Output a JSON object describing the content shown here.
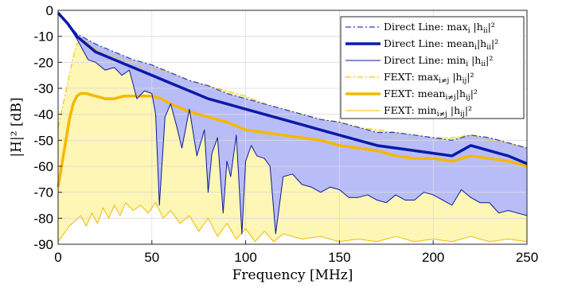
{
  "chart_data": {
    "type": "line",
    "title": "",
    "xlabel": "Frequency [MHz]",
    "ylabel": "|H|² [dB]",
    "xlim": [
      0,
      250
    ],
    "ylim": [
      -90,
      0
    ],
    "x_ticks": [
      "0",
      "50",
      "100",
      "150",
      "200",
      "250"
    ],
    "y_ticks": [
      "0",
      "-10",
      "-20",
      "-30",
      "-40",
      "-50",
      "-60",
      "-70",
      "-80",
      "-90"
    ],
    "grid": true,
    "legend_position": "top-right",
    "series": [
      {
        "name": "Direct Line: max_i |h_ii|²",
        "legend": {
          "prefix": "Direct Line: max",
          "sub": "i",
          "mid": " |h",
          "sub2": "ii",
          "suffix": "|²"
        },
        "color": "#1f3fbf",
        "style": "dashdot",
        "width": 1.2,
        "x": [
          0,
          5,
          10,
          15,
          20,
          30,
          40,
          50,
          60,
          70,
          80,
          90,
          100,
          110,
          120,
          130,
          140,
          150,
          160,
          170,
          180,
          190,
          200,
          210,
          220,
          230,
          240,
          250
        ],
        "y": [
          -0.5,
          -5,
          -9,
          -11,
          -13,
          -16,
          -19,
          -21,
          -24,
          -27,
          -29,
          -32,
          -34,
          -36,
          -38,
          -40,
          -42,
          -43,
          -45,
          -47,
          -47,
          -48,
          -49,
          -50,
          -48,
          -49,
          -51,
          -53
        ]
      },
      {
        "name": "Direct Line: mean_i |h_ii|²",
        "legend": {
          "prefix": "Direct Line: mean",
          "sub": "i",
          "mid": "|h",
          "sub2": "ii",
          "suffix": "|²"
        },
        "color": "#0a1aa8",
        "style": "solid",
        "width": 3.5,
        "x": [
          0,
          5,
          10,
          15,
          20,
          30,
          40,
          50,
          60,
          70,
          80,
          90,
          100,
          110,
          120,
          130,
          140,
          150,
          160,
          170,
          180,
          190,
          200,
          210,
          220,
          230,
          240,
          250
        ],
        "y": [
          -1,
          -5,
          -10,
          -13,
          -16,
          -19,
          -22,
          -25,
          -28,
          -31,
          -34,
          -36,
          -38,
          -40,
          -42,
          -44,
          -46,
          -48,
          -50,
          -52,
          -53,
          -54,
          -55,
          -56,
          -52,
          -54,
          -56,
          -59
        ]
      },
      {
        "name": "Direct Line: min_i |h_ii|²",
        "legend": {
          "prefix": "Direct Line: min",
          "sub": "i",
          "mid": " |h",
          "sub2": "ii",
          "suffix": "|²"
        },
        "color": "#0a1a9a",
        "style": "solid",
        "width": 1.0,
        "x": [
          0,
          5,
          10,
          13,
          16,
          20,
          25,
          30,
          34,
          38,
          42,
          46,
          50,
          52,
          54,
          57,
          60,
          63,
          66,
          70,
          74,
          78,
          80,
          82,
          85,
          88,
          90,
          92,
          95,
          98,
          100,
          103,
          106,
          110,
          113,
          116,
          120,
          125,
          130,
          135,
          140,
          145,
          150,
          155,
          160,
          165,
          170,
          175,
          180,
          185,
          190,
          195,
          200,
          205,
          210,
          215,
          220,
          225,
          230,
          235,
          240,
          245,
          250
        ],
        "y": [
          -1,
          -5,
          -11,
          -15,
          -19,
          -20,
          -23,
          -22,
          -25,
          -23,
          -34,
          -31,
          -32,
          -40,
          -75,
          -41,
          -36,
          -44,
          -53,
          -38,
          -56,
          -46,
          -70,
          -55,
          -49,
          -78,
          -58,
          -64,
          -48,
          -86,
          -58,
          -52,
          -56,
          -57,
          -60,
          -86,
          -64,
          -63,
          -67,
          -68,
          -70,
          -68,
          -69,
          -72,
          -72,
          -71,
          -73,
          -74,
          -71,
          -73,
          -73,
          -70,
          -71,
          -73,
          -75,
          -69,
          -72,
          -74,
          -74,
          -78,
          -77,
          -78,
          -79
        ]
      },
      {
        "name": "FEXT: max_{i≠j} |h_ij|²",
        "legend": {
          "prefix": "FEXT: max",
          "sub": "i≠j",
          "mid": " |h",
          "sub2": "ij",
          "suffix": "|²"
        },
        "color": "#f5c700",
        "style": "dashdot",
        "width": 1.2,
        "x": [
          0,
          3,
          6,
          8,
          10,
          12,
          15,
          20,
          25,
          30,
          35,
          40,
          45,
          50,
          60,
          70,
          80,
          90,
          100,
          110,
          120,
          130,
          140,
          150,
          160,
          170,
          180,
          190,
          200,
          210,
          220,
          230,
          240,
          250
        ],
        "y": [
          -45,
          -35,
          -25,
          -18,
          -13,
          -11,
          -12,
          -15,
          -17,
          -18,
          -19,
          -20,
          -22,
          -22,
          -24,
          -27,
          -29,
          -31,
          -33,
          -36,
          -38,
          -40,
          -42,
          -43,
          -45,
          -46,
          -47,
          -48,
          -49,
          -49,
          -48,
          -50,
          -51,
          -53
        ]
      },
      {
        "name": "FEXT: mean_{i≠j} |h_ij|²",
        "legend": {
          "prefix": "FEXT: mean",
          "sub": "i≠j",
          "mid": "|h",
          "sub2": "ij",
          "suffix": "|²"
        },
        "color": "#f5b800",
        "style": "solid",
        "width": 3.5,
        "x": [
          0,
          3,
          6,
          8,
          10,
          12,
          15,
          20,
          25,
          30,
          35,
          40,
          45,
          50,
          55,
          60,
          70,
          80,
          90,
          100,
          110,
          120,
          130,
          140,
          150,
          160,
          170,
          180,
          190,
          200,
          210,
          220,
          230,
          240,
          250
        ],
        "y": [
          -68,
          -55,
          -42,
          -36,
          -33,
          -32,
          -32,
          -33,
          -34,
          -34,
          -33,
          -33,
          -33,
          -33,
          -34,
          -36,
          -39,
          -41,
          -43,
          -46,
          -47,
          -48,
          -49,
          -50,
          -52,
          -53,
          -54,
          -56,
          -57,
          -57,
          -58,
          -56,
          -57,
          -58,
          -60
        ]
      },
      {
        "name": "FEXT: min_{i≠j} |h_ij|²",
        "legend": {
          "prefix": "FEXT: min",
          "sub": "i≠j",
          "mid": " |h",
          "sub2": "ij",
          "suffix": "|²"
        },
        "color": "#f5b800",
        "style": "solid",
        "width": 1.0,
        "x": [
          0,
          3,
          6,
          9,
          12,
          15,
          18,
          21,
          24,
          27,
          30,
          33,
          36,
          40,
          44,
          48,
          52,
          56,
          60,
          65,
          70,
          75,
          80,
          85,
          90,
          95,
          100,
          105,
          110,
          115,
          120,
          130,
          140,
          150,
          160,
          170,
          180,
          190,
          200,
          210,
          220,
          230,
          240,
          250
        ],
        "y": [
          -89,
          -86,
          -83,
          -81,
          -79,
          -83,
          -78,
          -82,
          -76,
          -80,
          -75,
          -79,
          -74,
          -77,
          -75,
          -78,
          -74,
          -80,
          -77,
          -82,
          -79,
          -85,
          -80,
          -87,
          -82,
          -88,
          -84,
          -89,
          -85,
          -89,
          -86,
          -88,
          -87,
          -89,
          -88,
          -89,
          -87,
          -89,
          -88,
          -89,
          -87,
          -89,
          -88,
          -89
        ]
      }
    ]
  }
}
